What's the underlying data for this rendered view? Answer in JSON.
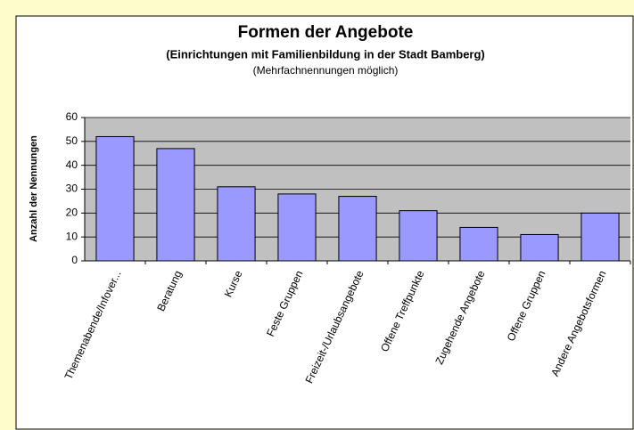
{
  "chart_data": {
    "type": "bar",
    "title": "Formen der Angebote",
    "subtitle": "(Einrichtungen mit Familienbildung in der Stadt Bamberg)",
    "note": "(Mehrfachnennungen möglich)",
    "y_label": "Anzahl der Nennungen",
    "categories": [
      "Themenabende/Infover...",
      "Beratung",
      "Kurse",
      "Feste Gruppen",
      "Freizeit-/Urlaubsangebote",
      "Offene Treffpunkte",
      "Zugehende Angebote",
      "Offene Gruppen",
      "Andere Angebotsformen"
    ],
    "values": [
      52,
      47,
      31,
      28,
      27,
      21,
      14,
      11,
      20
    ],
    "color": "#9999ff",
    "ylim": [
      0,
      60
    ],
    "yticks": [
      0,
      10,
      20,
      30,
      40,
      50,
      60
    ],
    "grid": true
  }
}
